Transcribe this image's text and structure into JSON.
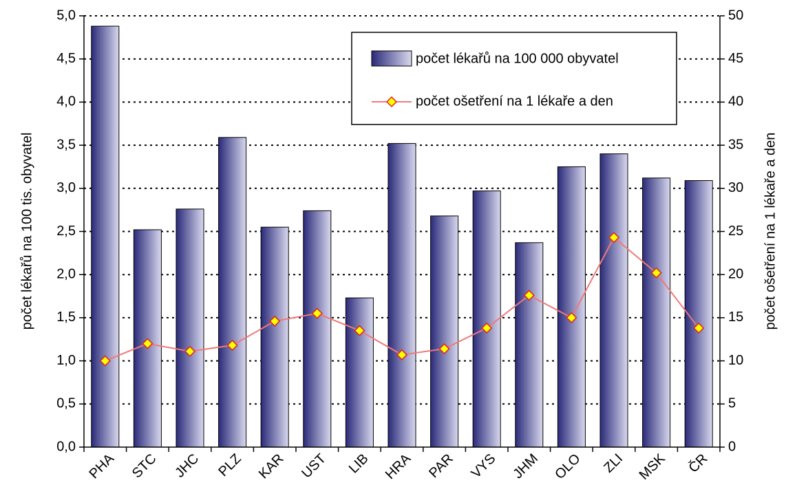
{
  "chart_data": {
    "type": "bar-line",
    "categories": [
      "PHA",
      "STC",
      "JHC",
      "PLZ",
      "KAR",
      "UST",
      "LIB",
      "HRA",
      "PAR",
      "VYS",
      "JHM",
      "OLO",
      "ZLI",
      "MSK",
      "ČR"
    ],
    "series": [
      {
        "name": "počet lékařů na 100 000 obyvatel",
        "type": "bar",
        "axis": "y",
        "color": "#2a2a7a",
        "values": [
          4.88,
          2.52,
          2.76,
          3.59,
          2.55,
          2.74,
          1.73,
          3.52,
          2.68,
          2.97,
          2.37,
          3.25,
          3.4,
          3.12,
          3.09
        ]
      },
      {
        "name": "počet ošetření na 1 lékaře a den",
        "type": "line",
        "axis": "y2",
        "color": "#f07878",
        "marker_color": "#ffff00",
        "values": [
          10.0,
          12.0,
          11.1,
          11.8,
          14.6,
          15.5,
          13.5,
          10.7,
          11.4,
          13.8,
          17.6,
          15.0,
          24.3,
          20.2,
          13.8
        ]
      }
    ],
    "ylabel": "počet lékařů na 100 tis. obyvatel",
    "y2label": "počet ošetření na 1 lékaře a den",
    "ylim": [
      0,
      5
    ],
    "yticks": [
      {
        "value": 0,
        "label": "0,0"
      },
      {
        "value": 0.5,
        "label": "0,5"
      },
      {
        "value": 1,
        "label": "1,0"
      },
      {
        "value": 1.5,
        "label": "1,5"
      },
      {
        "value": 2,
        "label": "2,0"
      },
      {
        "value": 2.5,
        "label": "2,5"
      },
      {
        "value": 3,
        "label": "3,0"
      },
      {
        "value": 3.5,
        "label": "3,5"
      },
      {
        "value": 4,
        "label": "4,0"
      },
      {
        "value": 4.5,
        "label": "4,5"
      },
      {
        "value": 5,
        "label": "5,0"
      }
    ],
    "y2lim": [
      0,
      50
    ],
    "y2ticks": [
      0,
      5,
      10,
      15,
      20,
      25,
      30,
      35,
      40,
      45,
      50
    ],
    "grid": true
  }
}
